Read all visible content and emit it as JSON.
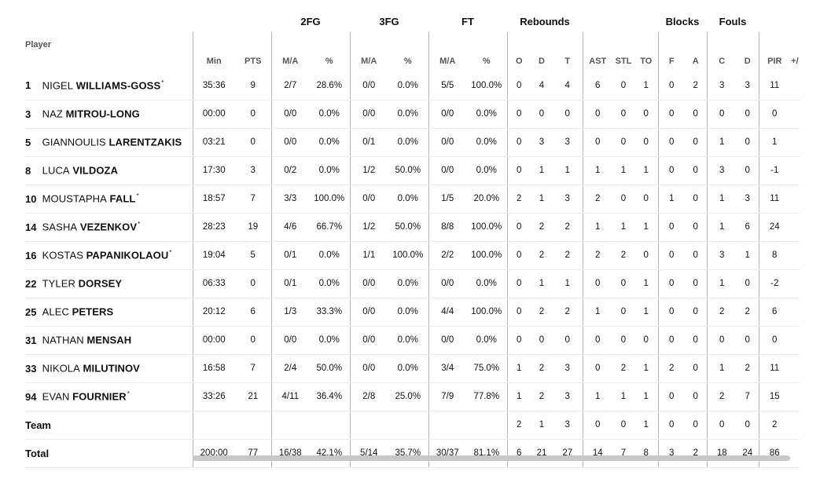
{
  "groups": {
    "fg2": "2FG",
    "fg3": "3FG",
    "ft": "FT",
    "rebounds": "Rebounds",
    "blocks": "Blocks",
    "fouls": "Fouls"
  },
  "columns": {
    "player": "Player",
    "min": "Min",
    "pts": "PTS",
    "fg2_ma": "M/A",
    "fg2_pct": "%",
    "fg3_ma": "M/A",
    "fg3_pct": "%",
    "ft_ma": "M/A",
    "ft_pct": "%",
    "reb_o": "O",
    "reb_d": "D",
    "reb_t": "T",
    "ast": "AST",
    "stl": "STL",
    "to": "TO",
    "blk_f": "F",
    "blk_a": "A",
    "foul_c": "C",
    "foul_d": "D",
    "pir": "PIR",
    "pm": "+/"
  },
  "players": [
    {
      "num": "1",
      "first": "NIGEL",
      "last": "WILLIAMS-GOSS",
      "star": "*",
      "min": "35:36",
      "pts": "9",
      "fg2_ma": "2/7",
      "fg2_pct": "28.6%",
      "fg3_ma": "0/0",
      "fg3_pct": "0.0%",
      "ft_ma": "5/5",
      "ft_pct": "100.0%",
      "o": "0",
      "d": "4",
      "t": "4",
      "ast": "6",
      "stl": "0",
      "to": "1",
      "bf": "0",
      "ba": "2",
      "fc": "3",
      "fd": "3",
      "pir": "11",
      "pm": ""
    },
    {
      "num": "3",
      "first": "NAZ",
      "last": "MITROU-LONG",
      "star": "",
      "min": "00:00",
      "pts": "0",
      "fg2_ma": "0/0",
      "fg2_pct": "0.0%",
      "fg3_ma": "0/0",
      "fg3_pct": "0.0%",
      "ft_ma": "0/0",
      "ft_pct": "0.0%",
      "o": "0",
      "d": "0",
      "t": "0",
      "ast": "0",
      "stl": "0",
      "to": "0",
      "bf": "0",
      "ba": "0",
      "fc": "0",
      "fd": "0",
      "pir": "0",
      "pm": ""
    },
    {
      "num": "5",
      "first": "GIANNOULIS",
      "last": "LARENTZAKIS",
      "star": "",
      "min": "03:21",
      "pts": "0",
      "fg2_ma": "0/0",
      "fg2_pct": "0.0%",
      "fg3_ma": "0/1",
      "fg3_pct": "0.0%",
      "ft_ma": "0/0",
      "ft_pct": "0.0%",
      "o": "0",
      "d": "3",
      "t": "3",
      "ast": "0",
      "stl": "0",
      "to": "0",
      "bf": "0",
      "ba": "0",
      "fc": "1",
      "fd": "0",
      "pir": "1",
      "pm": ""
    },
    {
      "num": "8",
      "first": "LUCA",
      "last": "VILDOZA",
      "star": "",
      "min": "17:30",
      "pts": "3",
      "fg2_ma": "0/2",
      "fg2_pct": "0.0%",
      "fg3_ma": "1/2",
      "fg3_pct": "50.0%",
      "ft_ma": "0/0",
      "ft_pct": "0.0%",
      "o": "0",
      "d": "1",
      "t": "1",
      "ast": "1",
      "stl": "1",
      "to": "1",
      "bf": "0",
      "ba": "0",
      "fc": "3",
      "fd": "0",
      "pir": "-1",
      "pm": ""
    },
    {
      "num": "10",
      "first": "MOUSTAPHA",
      "last": "FALL",
      "star": "*",
      "min": "18:57",
      "pts": "7",
      "fg2_ma": "3/3",
      "fg2_pct": "100.0%",
      "fg3_ma": "0/0",
      "fg3_pct": "0.0%",
      "ft_ma": "1/5",
      "ft_pct": "20.0%",
      "o": "2",
      "d": "1",
      "t": "3",
      "ast": "2",
      "stl": "0",
      "to": "0",
      "bf": "1",
      "ba": "0",
      "fc": "1",
      "fd": "3",
      "pir": "11",
      "pm": ""
    },
    {
      "num": "14",
      "first": "SASHA",
      "last": "VEZENKOV",
      "star": "*",
      "min": "28:23",
      "pts": "19",
      "fg2_ma": "4/6",
      "fg2_pct": "66.7%",
      "fg3_ma": "1/2",
      "fg3_pct": "50.0%",
      "ft_ma": "8/8",
      "ft_pct": "100.0%",
      "o": "0",
      "d": "2",
      "t": "2",
      "ast": "1",
      "stl": "1",
      "to": "1",
      "bf": "0",
      "ba": "0",
      "fc": "1",
      "fd": "6",
      "pir": "24",
      "pm": ""
    },
    {
      "num": "16",
      "first": "KOSTAS",
      "last": "PAPANIKOLAOU",
      "star": "*",
      "min": "19:04",
      "pts": "5",
      "fg2_ma": "0/1",
      "fg2_pct": "0.0%",
      "fg3_ma": "1/1",
      "fg3_pct": "100.0%",
      "ft_ma": "2/2",
      "ft_pct": "100.0%",
      "o": "0",
      "d": "2",
      "t": "2",
      "ast": "2",
      "stl": "2",
      "to": "0",
      "bf": "0",
      "ba": "0",
      "fc": "3",
      "fd": "1",
      "pir": "8",
      "pm": ""
    },
    {
      "num": "22",
      "first": "TYLER",
      "last": "DORSEY",
      "star": "",
      "min": "06:33",
      "pts": "0",
      "fg2_ma": "0/1",
      "fg2_pct": "0.0%",
      "fg3_ma": "0/0",
      "fg3_pct": "0.0%",
      "ft_ma": "0/0",
      "ft_pct": "0.0%",
      "o": "0",
      "d": "1",
      "t": "1",
      "ast": "0",
      "stl": "0",
      "to": "1",
      "bf": "0",
      "ba": "0",
      "fc": "1",
      "fd": "0",
      "pir": "-2",
      "pm": ""
    },
    {
      "num": "25",
      "first": "ALEC",
      "last": "PETERS",
      "star": "",
      "min": "20:12",
      "pts": "6",
      "fg2_ma": "1/3",
      "fg2_pct": "33.3%",
      "fg3_ma": "0/0",
      "fg3_pct": "0.0%",
      "ft_ma": "4/4",
      "ft_pct": "100.0%",
      "o": "0",
      "d": "2",
      "t": "2",
      "ast": "1",
      "stl": "0",
      "to": "1",
      "bf": "0",
      "ba": "0",
      "fc": "2",
      "fd": "2",
      "pir": "6",
      "pm": ""
    },
    {
      "num": "31",
      "first": "NATHAN",
      "last": "MENSAH",
      "star": "",
      "min": "00:00",
      "pts": "0",
      "fg2_ma": "0/0",
      "fg2_pct": "0.0%",
      "fg3_ma": "0/0",
      "fg3_pct": "0.0%",
      "ft_ma": "0/0",
      "ft_pct": "0.0%",
      "o": "0",
      "d": "0",
      "t": "0",
      "ast": "0",
      "stl": "0",
      "to": "0",
      "bf": "0",
      "ba": "0",
      "fc": "0",
      "fd": "0",
      "pir": "0",
      "pm": ""
    },
    {
      "num": "33",
      "first": "NIKOLA",
      "last": "MILUTINOV",
      "star": "",
      "min": "16:58",
      "pts": "7",
      "fg2_ma": "2/4",
      "fg2_pct": "50.0%",
      "fg3_ma": "0/0",
      "fg3_pct": "0.0%",
      "ft_ma": "3/4",
      "ft_pct": "75.0%",
      "o": "1",
      "d": "2",
      "t": "3",
      "ast": "0",
      "stl": "2",
      "to": "1",
      "bf": "2",
      "ba": "0",
      "fc": "1",
      "fd": "2",
      "pir": "11",
      "pm": ""
    },
    {
      "num": "94",
      "first": "EVAN",
      "last": "FOURNIER",
      "star": "*",
      "min": "33:26",
      "pts": "21",
      "fg2_ma": "4/11",
      "fg2_pct": "36.4%",
      "fg3_ma": "2/8",
      "fg3_pct": "25.0%",
      "ft_ma": "7/9",
      "ft_pct": "77.8%",
      "o": "1",
      "d": "2",
      "t": "3",
      "ast": "1",
      "stl": "1",
      "to": "1",
      "bf": "0",
      "ba": "0",
      "fc": "2",
      "fd": "7",
      "pir": "15",
      "pm": ""
    }
  ],
  "team": {
    "label": "Team",
    "min": "",
    "pts": "",
    "fg2_ma": "",
    "fg2_pct": "",
    "fg3_ma": "",
    "fg3_pct": "",
    "ft_ma": "",
    "ft_pct": "",
    "o": "2",
    "d": "1",
    "t": "3",
    "ast": "0",
    "stl": "0",
    "to": "1",
    "bf": "0",
    "ba": "0",
    "fc": "0",
    "fd": "0",
    "pir": "2",
    "pm": ""
  },
  "total": {
    "label": "Total",
    "min": "200:00",
    "pts": "77",
    "fg2_ma": "16/38",
    "fg2_pct": "42.1%",
    "fg3_ma": "5/14",
    "fg3_pct": "35.7%",
    "ft_ma": "30/37",
    "ft_pct": "81.1%",
    "o": "6",
    "d": "21",
    "t": "27",
    "ast": "14",
    "stl": "7",
    "to": "8",
    "bf": "3",
    "ba": "2",
    "fc": "18",
    "fd": "24",
    "pir": "86",
    "pm": ""
  }
}
